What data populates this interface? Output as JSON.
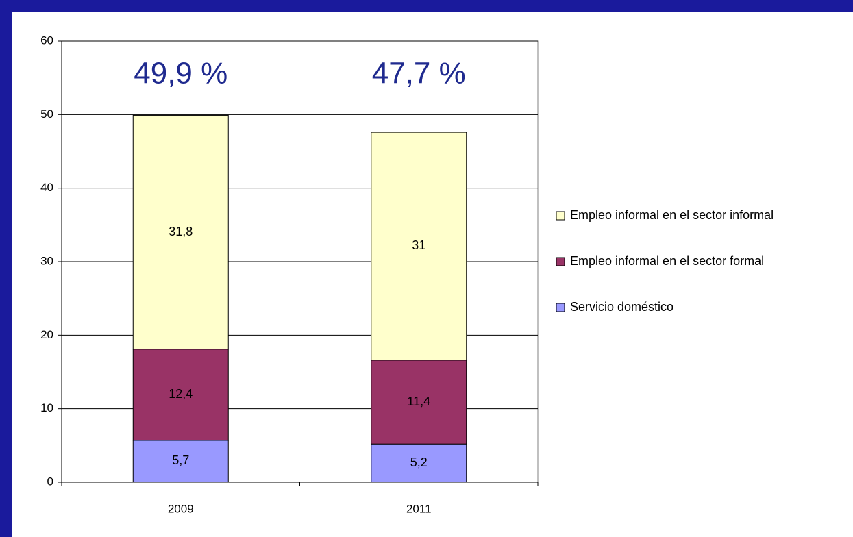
{
  "chart_data": {
    "type": "stacked_bar",
    "categories": [
      "2009",
      "2011"
    ],
    "series": [
      {
        "name": "Servicio doméstico",
        "color": "#9999ff",
        "values": [
          5.7,
          5.2
        ],
        "value_labels": [
          "5,7",
          "5,2"
        ]
      },
      {
        "name": "Empleo informal en el sector formal",
        "color": "#993366",
        "values": [
          12.4,
          11.4
        ],
        "value_labels": [
          "12,4",
          "11,4"
        ]
      },
      {
        "name": "Empleo informal en el sector informal",
        "color": "#ffffcc",
        "values": [
          31.8,
          31
        ],
        "value_labels": [
          "31,8",
          "31"
        ]
      }
    ],
    "annotations": [
      "49,9 %",
      "47,7 %"
    ],
    "ylim": [
      0,
      60
    ],
    "yticks": [
      0,
      10,
      20,
      30,
      40,
      50,
      60
    ],
    "grid": true,
    "legend": "right"
  }
}
